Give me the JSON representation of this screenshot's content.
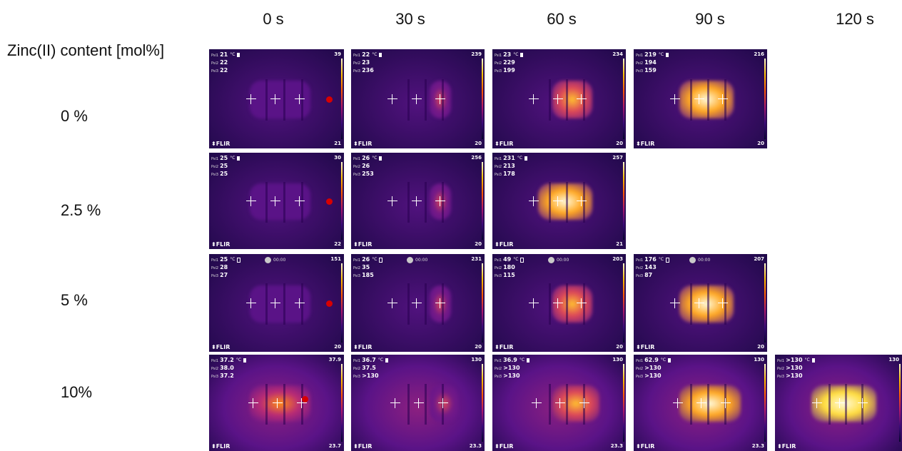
{
  "figure": {
    "row_title": "Zinc(II) content [mol%]",
    "columns": [
      "0 s",
      "30 s",
      "60 s",
      "90 s",
      "120 s"
    ],
    "rows": [
      "0 %",
      "2.5 %",
      "5 %",
      "10%"
    ],
    "brand": "⬍FLIR",
    "unit": "°C",
    "timer_text": "00:00",
    "spot_labels": [
      "Psi1",
      "Psi2",
      "Psi3"
    ]
  },
  "tiles": [
    {
      "row": 0,
      "col": 0,
      "sp": [
        "21",
        "22",
        "22"
      ],
      "max": "39",
      "min": "21",
      "bat": "solid",
      "timer": false,
      "heat": 0.1,
      "ign": true
    },
    {
      "row": 0,
      "col": 1,
      "sp": [
        "22",
        "23",
        "236"
      ],
      "max": "239",
      "min": "20",
      "bat": "solid",
      "timer": false,
      "heat": 0.35,
      "ign": false
    },
    {
      "row": 0,
      "col": 2,
      "sp": [
        "23",
        "229",
        "199"
      ],
      "max": "234",
      "min": "20",
      "bat": "solid",
      "timer": false,
      "heat": 0.6,
      "ign": false
    },
    {
      "row": 0,
      "col": 3,
      "sp": [
        "219",
        "194",
        "159"
      ],
      "max": "216",
      "min": "20",
      "bat": "solid",
      "timer": false,
      "heat": 0.8,
      "ign": false
    },
    {
      "row": 1,
      "col": 0,
      "sp": [
        "25",
        "25",
        "25"
      ],
      "max": "30",
      "min": "22",
      "bat": "solid",
      "timer": false,
      "heat": 0.1,
      "ign": true
    },
    {
      "row": 1,
      "col": 1,
      "sp": [
        "26",
        "26",
        "253"
      ],
      "max": "256",
      "min": "20",
      "bat": "solid",
      "timer": false,
      "heat": 0.35,
      "ign": false
    },
    {
      "row": 1,
      "col": 2,
      "sp": [
        "231",
        "213",
        "178"
      ],
      "max": "257",
      "min": "21",
      "bat": "solid",
      "timer": false,
      "heat": 0.8,
      "ign": false
    },
    {
      "row": 2,
      "col": 0,
      "sp": [
        "25",
        "28",
        "27"
      ],
      "max": "151",
      "min": "20",
      "bat": "hollow",
      "timer": true,
      "heat": 0.1,
      "ign": true
    },
    {
      "row": 2,
      "col": 1,
      "sp": [
        "26",
        "35",
        "185"
      ],
      "max": "231",
      "min": "20",
      "bat": "hollow",
      "timer": true,
      "heat": 0.35,
      "ign": false
    },
    {
      "row": 2,
      "col": 2,
      "sp": [
        "49",
        "180",
        "115"
      ],
      "max": "203",
      "min": "20",
      "bat": "hollow",
      "timer": true,
      "heat": 0.6,
      "ign": false
    },
    {
      "row": 2,
      "col": 3,
      "sp": [
        "176",
        "143",
        "87"
      ],
      "max": "207",
      "min": "20",
      "bat": "hollow",
      "timer": true,
      "heat": 0.8,
      "ign": false
    },
    {
      "row": 3,
      "col": 0,
      "sp": [
        "37.2",
        "38.0",
        "37.2"
      ],
      "max": "37.9",
      "min": "23.7",
      "bat": "solid",
      "timer": false,
      "heat": 0.5,
      "ign": true
    },
    {
      "row": 3,
      "col": 1,
      "sp": [
        "36.7",
        "37.5",
        ">130"
      ],
      "max": "130",
      "min": "23.3",
      "bat": "solid",
      "timer": false,
      "heat": 0.35,
      "ign": false
    },
    {
      "row": 3,
      "col": 2,
      "sp": [
        "36.9",
        ">130",
        ">130"
      ],
      "max": "130",
      "min": "23.3",
      "bat": "solid",
      "timer": false,
      "heat": 0.6,
      "ign": false
    },
    {
      "row": 3,
      "col": 3,
      "sp": [
        "62.9",
        ">130",
        ">130"
      ],
      "max": "130",
      "min": "23.3",
      "bat": "solid",
      "timer": false,
      "heat": 0.8,
      "ign": false
    },
    {
      "row": 3,
      "col": 4,
      "sp": [
        ">130",
        ">130",
        ">130"
      ],
      "max": "130",
      "min": "",
      "bat": "solid",
      "timer": false,
      "heat": 0.9,
      "ign": false
    }
  ]
}
